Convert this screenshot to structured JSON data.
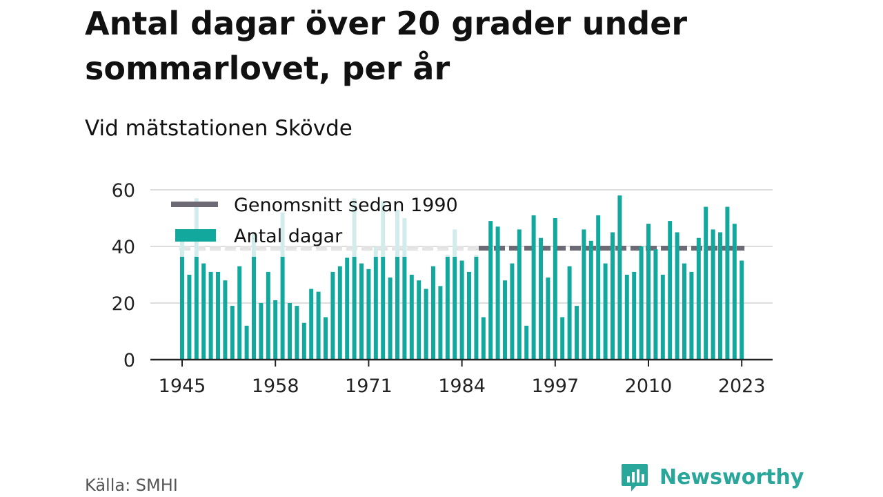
{
  "header": {
    "title": "Antal dagar över 20 grader under sommarlovet, per år",
    "subtitle": "Vid mätstationen Skövde"
  },
  "footer": {
    "source": "Källa: SMHI",
    "brand_name": "Newsworthy",
    "brand_icon": "bar-chart-speech-bubble-icon"
  },
  "colors": {
    "bars": "#13a89e",
    "bars_faded": "#d2eceb",
    "average_line": "#6d6a75",
    "average_line_faded": "#e4e4e4",
    "grid": "#dddddd",
    "axis": "#222222",
    "brand": "#2aa79b"
  },
  "chart_data": {
    "type": "bar",
    "title": "Antal dagar över 20 grader under sommarlovet, per år",
    "subtitle": "Vid mätstationen Skövde",
    "xlabel": "",
    "ylabel": "",
    "ylim": [
      0,
      60
    ],
    "y_ticks": [
      0,
      20,
      40,
      60
    ],
    "x_ticks": [
      "1945",
      "1958",
      "1971",
      "1984",
      "1997",
      "2010",
      "2023"
    ],
    "grid": true,
    "legend_position": "top-left",
    "legend": [
      "Genomsnitt sedan 1990",
      "Antal dagar"
    ],
    "categories": [
      1945,
      1946,
      1947,
      1948,
      1949,
      1950,
      1951,
      1952,
      1953,
      1954,
      1955,
      1956,
      1957,
      1958,
      1959,
      1960,
      1961,
      1962,
      1963,
      1964,
      1965,
      1966,
      1967,
      1968,
      1969,
      1970,
      1971,
      1972,
      1973,
      1974,
      1975,
      1976,
      1977,
      1978,
      1979,
      1980,
      1981,
      1982,
      1983,
      1984,
      1985,
      1986,
      1987,
      1988,
      1989,
      1990,
      1991,
      1992,
      1993,
      1994,
      1995,
      1996,
      1997,
      1998,
      1999,
      2000,
      2001,
      2002,
      2003,
      2004,
      2005,
      2006,
      2007,
      2008,
      2009,
      2010,
      2011,
      2012,
      2013,
      2014,
      2015,
      2016,
      2017,
      2018,
      2019,
      2020,
      2021,
      2022,
      2023
    ],
    "series": [
      {
        "name": "Antal dagar",
        "values": [
          43,
          30,
          57,
          34,
          31,
          31,
          28,
          19,
          33,
          12,
          45,
          20,
          31,
          21,
          52,
          20,
          19,
          13,
          25,
          24,
          15,
          31,
          33,
          36,
          57,
          34,
          32,
          40,
          56,
          29,
          53,
          50,
          30,
          28,
          25,
          33,
          26,
          37,
          46,
          35,
          31,
          37,
          15,
          49,
          47,
          28,
          34,
          46,
          12,
          51,
          43,
          29,
          50,
          15,
          33,
          19,
          46,
          42,
          51,
          34,
          45,
          58,
          30,
          31,
          40,
          48,
          39,
          30,
          49,
          45,
          34,
          31,
          43,
          54,
          46,
          45,
          54,
          48,
          35
        ]
      },
      {
        "name": "Genomsnitt sedan 1990",
        "value": 39.4
      }
    ]
  }
}
